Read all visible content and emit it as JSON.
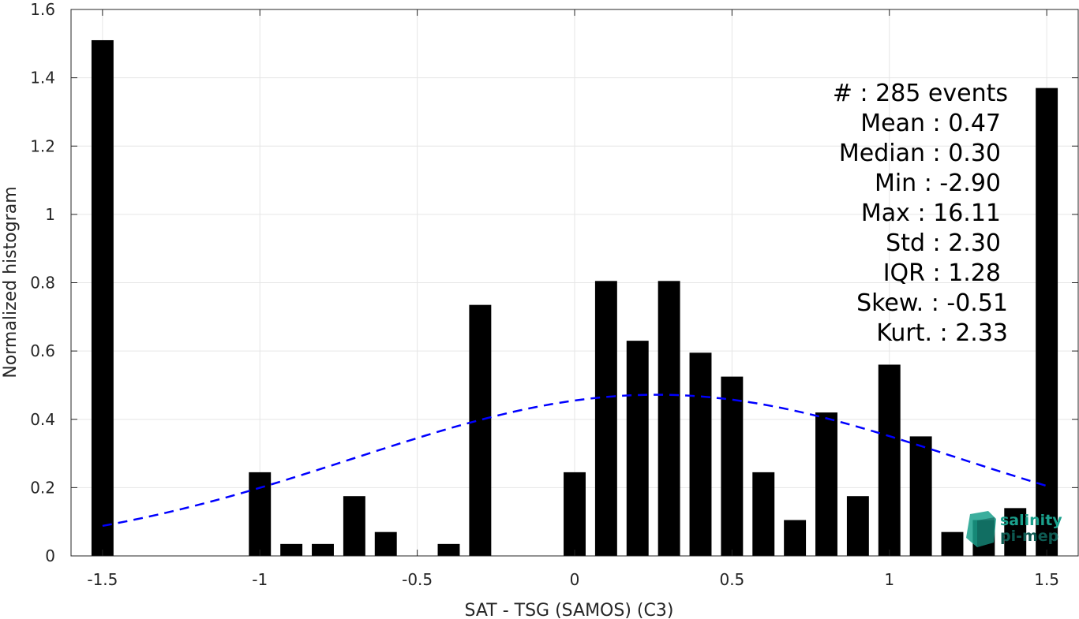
{
  "chart_data": {
    "type": "bar",
    "xlabel": "SAT - TSG (SAMOS) (C3)",
    "ylabel": "Normalized histogram",
    "xlim": [
      -1.6,
      1.6
    ],
    "ylim": [
      0,
      1.6
    ],
    "xticks": [
      -1.5,
      -1,
      -0.5,
      0,
      0.5,
      1,
      1.5
    ],
    "xtick_labels": [
      "-1.5",
      "-1",
      "-0.5",
      "0",
      "0.5",
      "1",
      "1.5"
    ],
    "yticks": [
      0,
      0.2,
      0.4,
      0.6,
      0.8,
      1.0,
      1.2,
      1.4,
      1.6
    ],
    "ytick_labels": [
      "0",
      "0.2",
      "0.4",
      "0.6",
      "0.8",
      "1",
      "1.2",
      "1.4",
      "1.6"
    ],
    "grid": true,
    "bar_color": "#000000",
    "bars": [
      {
        "x": -1.5,
        "value": 1.51
      },
      {
        "x": -1.0,
        "value": 0.245
      },
      {
        "x": -0.9,
        "value": 0.035
      },
      {
        "x": -0.8,
        "value": 0.035
      },
      {
        "x": -0.7,
        "value": 0.175
      },
      {
        "x": -0.6,
        "value": 0.07
      },
      {
        "x": -0.4,
        "value": 0.035
      },
      {
        "x": -0.3,
        "value": 0.735
      },
      {
        "x": 0.0,
        "value": 0.245
      },
      {
        "x": 0.1,
        "value": 0.805
      },
      {
        "x": 0.2,
        "value": 0.63
      },
      {
        "x": 0.3,
        "value": 0.805
      },
      {
        "x": 0.4,
        "value": 0.595
      },
      {
        "x": 0.5,
        "value": 0.525
      },
      {
        "x": 0.6,
        "value": 0.245
      },
      {
        "x": 0.7,
        "value": 0.105
      },
      {
        "x": 0.8,
        "value": 0.42
      },
      {
        "x": 0.9,
        "value": 0.175
      },
      {
        "x": 1.0,
        "value": 0.56
      },
      {
        "x": 1.1,
        "value": 0.35
      },
      {
        "x": 1.2,
        "value": 0.07
      },
      {
        "x": 1.3,
        "value": 0.105
      },
      {
        "x": 1.4,
        "value": 0.14
      },
      {
        "x": 1.5,
        "value": 1.37
      }
    ],
    "fit_curve": {
      "type": "gaussian",
      "style": "dashed",
      "color": "#0000ff",
      "mean": 0.26,
      "sigma": 0.96,
      "peak": 0.472,
      "x_range": [
        -1.5,
        1.5
      ]
    },
    "stats": {
      "count": "#  : 285 events",
      "mean": "Mean : 0.47",
      "median": "Median : 0.30",
      "min": "Min : -2.90",
      "max": "Max : 16.11",
      "std": "Std : 2.30",
      "iqr": "IQR : 1.28",
      "skew": "Skew. : -0.51",
      "kurt": "Kurt. : 2.33"
    }
  },
  "logo": {
    "line1": "salinity",
    "line2": "pi-mep",
    "color1": "#1aa08c",
    "color2": "#0e5a52"
  }
}
